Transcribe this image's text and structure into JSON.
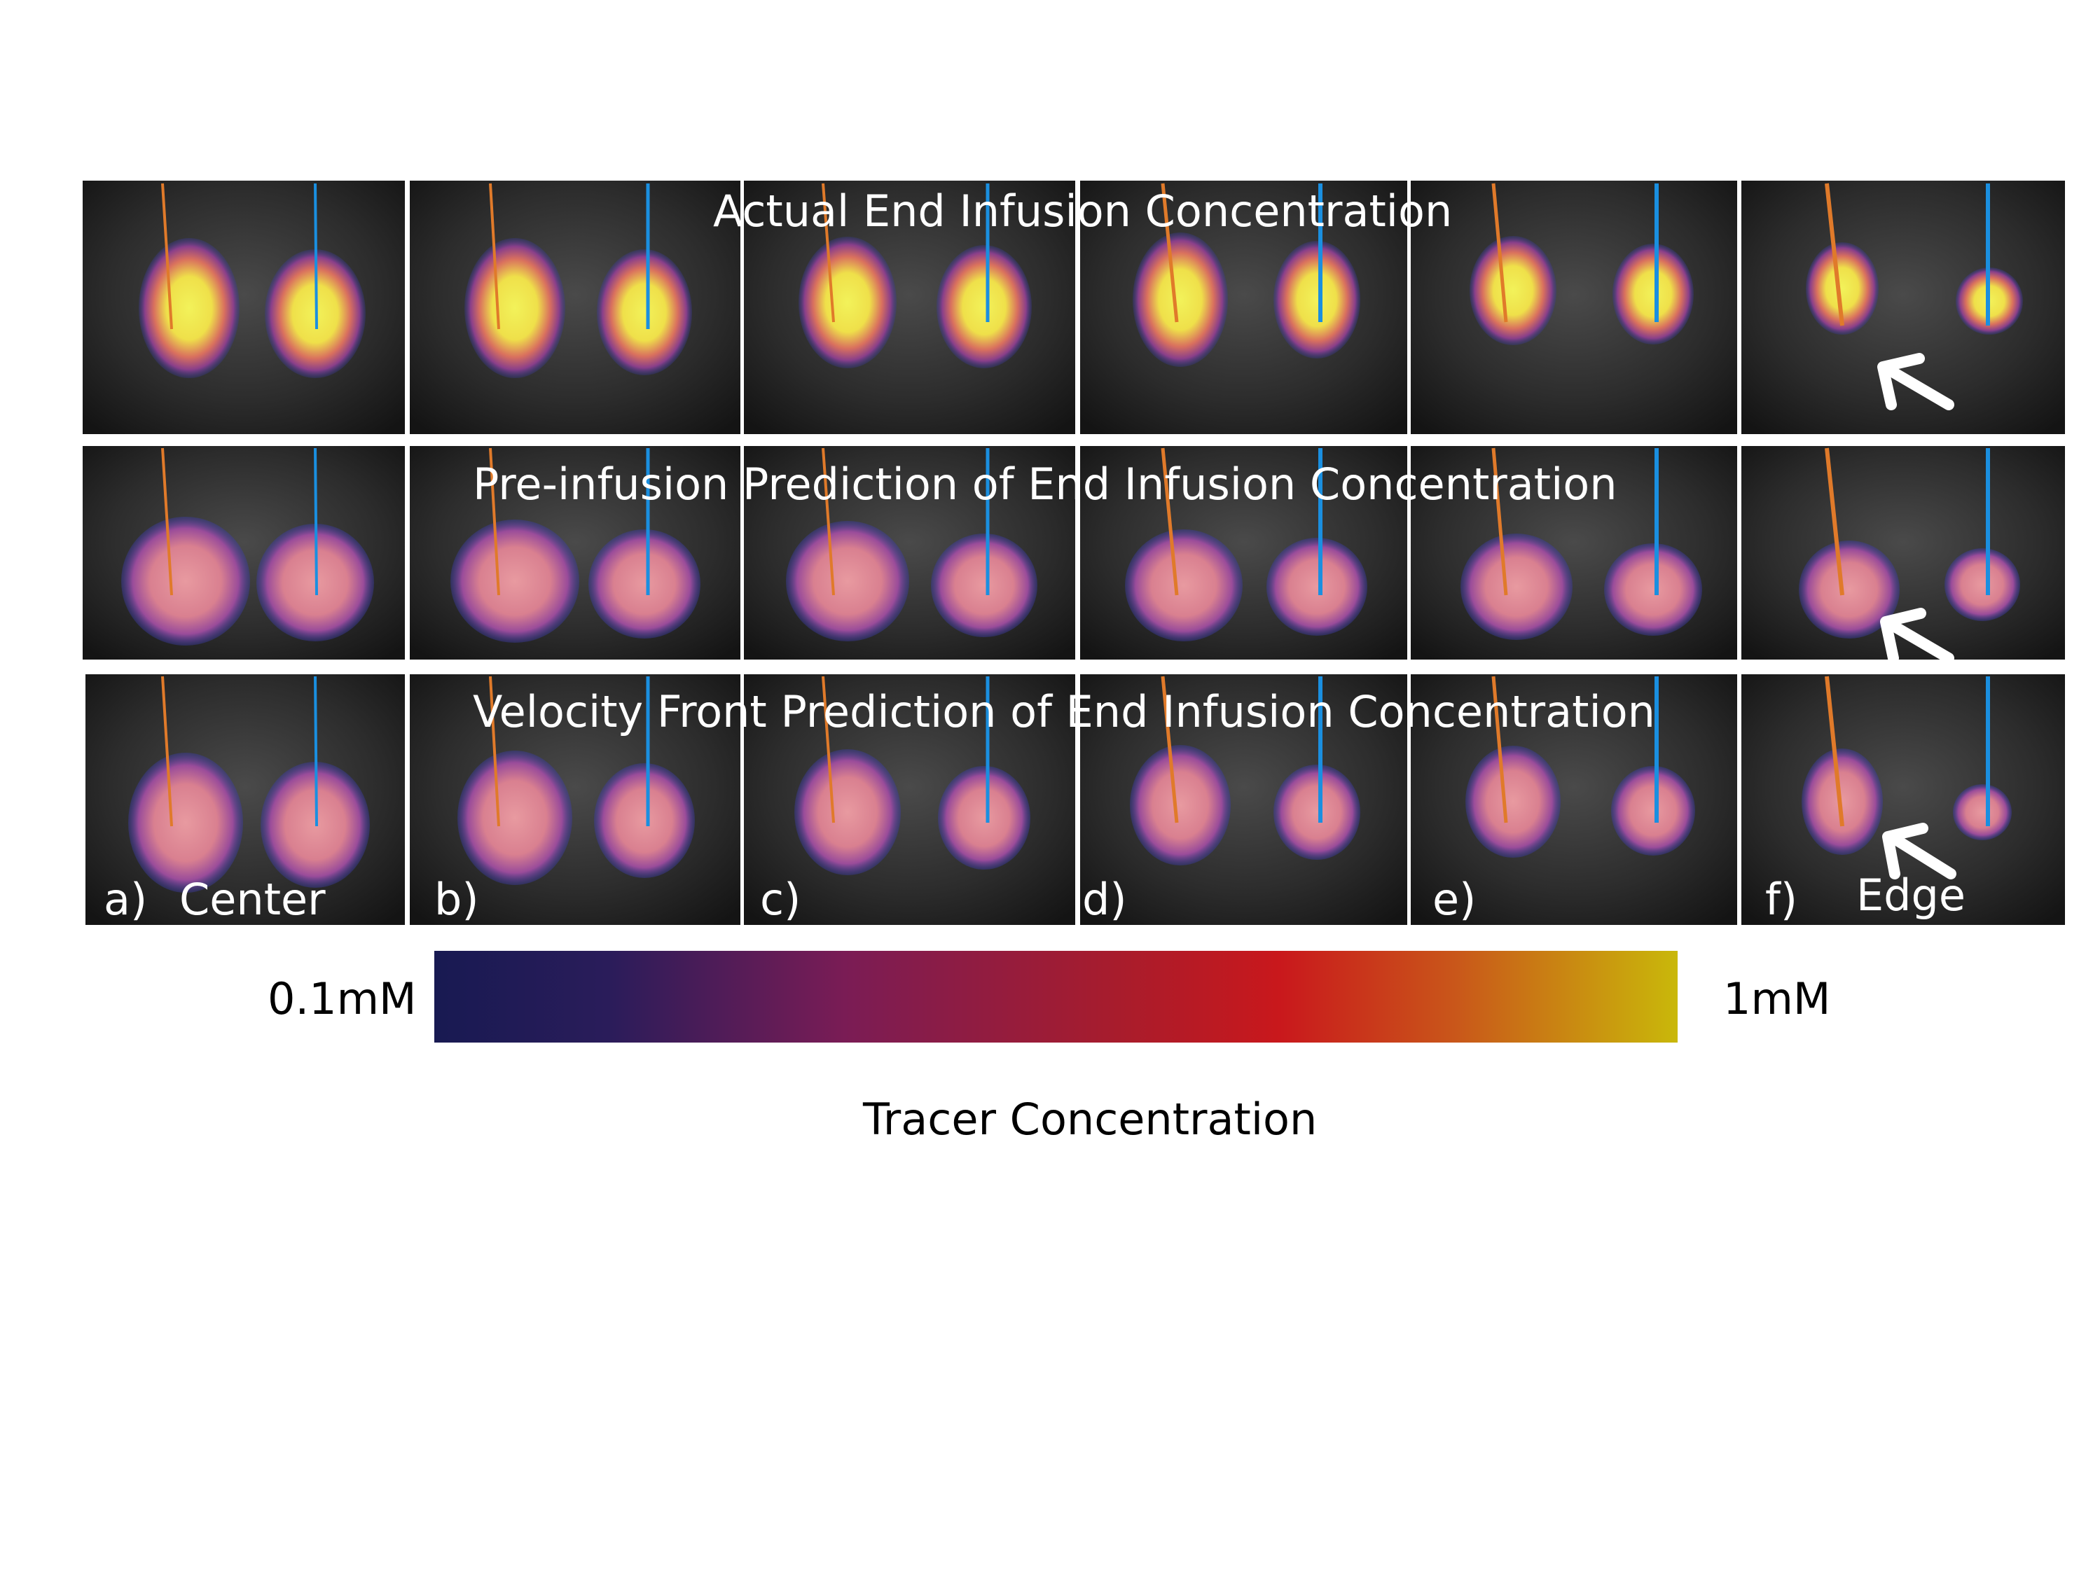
{
  "rows": [
    {
      "title": "Actual End Infusion Concentration"
    },
    {
      "title": "Pre-infusion Prediction of End Infusion Concentration"
    },
    {
      "title": "Velocity Front Prediction of End Infusion Concentration"
    }
  ],
  "panels": [
    {
      "label": "a)",
      "annotation": "Center"
    },
    {
      "label": "b)",
      "annotation": ""
    },
    {
      "label": "c)",
      "annotation": ""
    },
    {
      "label": "d)",
      "annotation": ""
    },
    {
      "label": "e)",
      "annotation": ""
    },
    {
      "label": "f)",
      "annotation": "Edge"
    }
  ],
  "colorbar": {
    "min_label": "0.1mM",
    "max_label": "1mM",
    "title": "Tracer Concentration"
  },
  "colors": {
    "catheter_left": "#e07a2a",
    "catheter_right": "#1a8fe0",
    "arrow": "#ffffff"
  }
}
